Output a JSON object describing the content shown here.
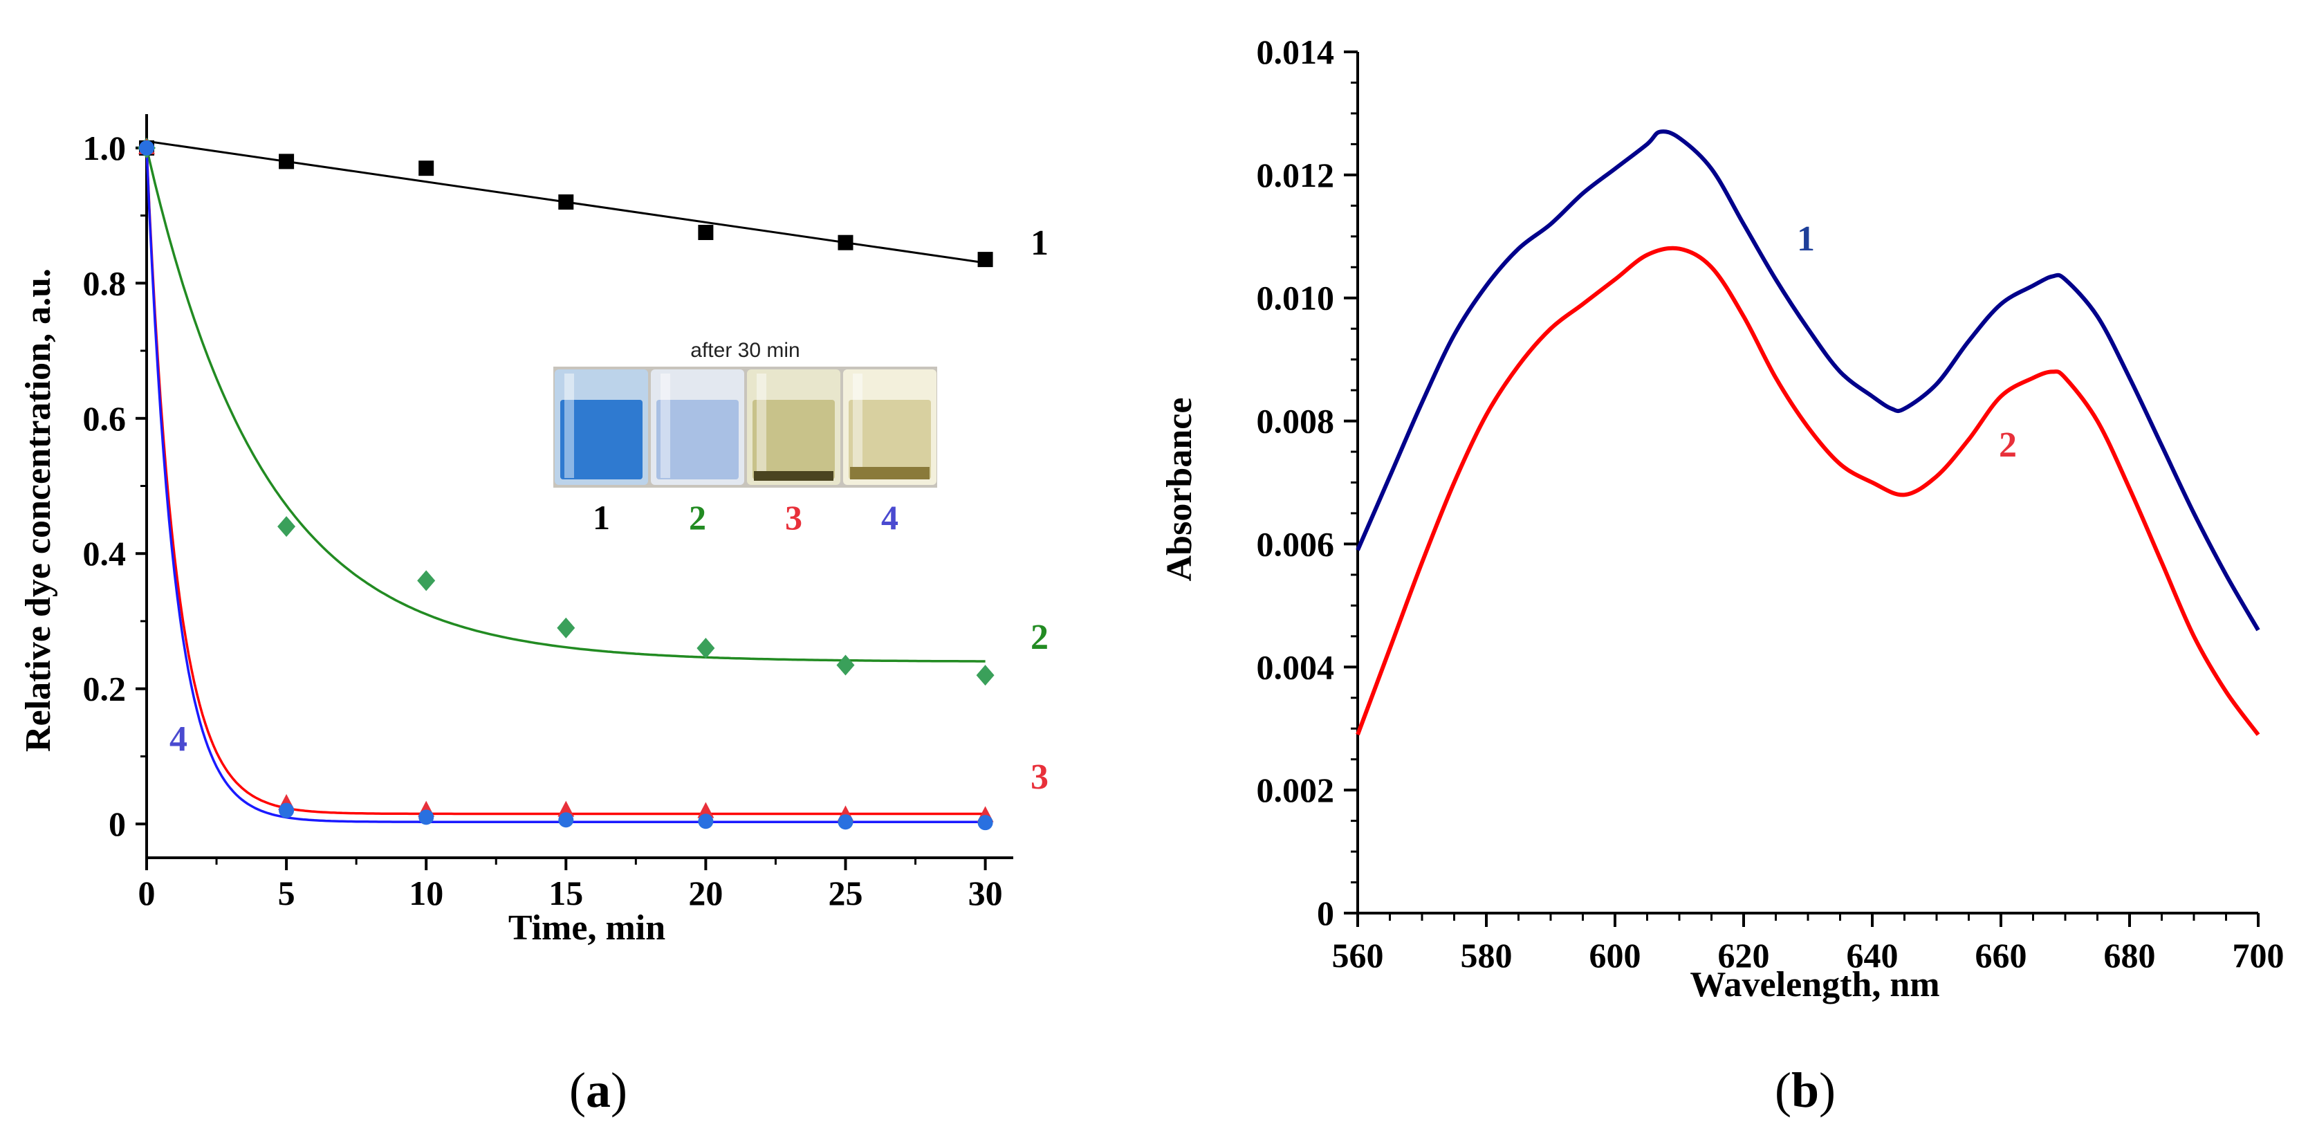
{
  "chart_data": [
    {
      "type": "scatter",
      "panel": "a",
      "title": "",
      "xlabel": "Time, min",
      "ylabel": "Relative dye concentration, a.u.",
      "xlim": [
        0,
        31
      ],
      "ylim": [
        -0.05,
        1.05
      ],
      "x_ticks": [
        0,
        5,
        10,
        15,
        20,
        25,
        30
      ],
      "x_tick_labels": [
        "0",
        "5",
        "10",
        "15",
        "20",
        "25",
        "30"
      ],
      "y_ticks": [
        0,
        0.2,
        0.4,
        0.6,
        0.8,
        1.0
      ],
      "y_tick_labels": [
        "0",
        "0.2",
        "0.4",
        "0.6",
        "0.8",
        "1.0"
      ],
      "grid": false,
      "series": [
        {
          "name": "1",
          "label": "1",
          "color": "#000000",
          "marker": "square",
          "x": [
            0,
            5,
            10,
            15,
            20,
            25,
            30
          ],
          "values": [
            1.0,
            0.98,
            0.97,
            0.92,
            0.875,
            0.86,
            0.835
          ],
          "fit": {
            "kind": "linear",
            "x0": 0,
            "y0": 1.01,
            "x1": 30,
            "y1": 0.83
          }
        },
        {
          "name": "2",
          "label": "2",
          "color": "#3aa05a",
          "line_color": "#228b22",
          "marker": "diamond",
          "x": [
            0,
            5,
            10,
            15,
            20,
            25,
            30
          ],
          "values": [
            1.0,
            0.44,
            0.36,
            0.29,
            0.26,
            0.235,
            0.22
          ],
          "fit": {
            "kind": "exp",
            "a": 0.24,
            "b": 0.76,
            "tau": 4.2
          }
        },
        {
          "name": "3",
          "label": "3",
          "color": "#e8303a",
          "line_color": "#ff0000",
          "marker": "triangle",
          "x": [
            0,
            5,
            10,
            15,
            20,
            25,
            30
          ],
          "values": [
            1.0,
            0.03,
            0.02,
            0.02,
            0.018,
            0.013,
            0.012
          ],
          "fit": {
            "kind": "exp",
            "a": 0.015,
            "b": 0.985,
            "tau": 1.05
          }
        },
        {
          "name": "4",
          "label": "4",
          "color": "#2970e0",
          "line_color": "#1a1aff",
          "marker": "circle",
          "x": [
            0,
            5,
            10,
            15,
            20,
            25,
            30
          ],
          "values": [
            1.0,
            0.02,
            0.01,
            0.006,
            0.004,
            0.003,
            0.002
          ],
          "fit": {
            "kind": "exp",
            "a": 0.003,
            "b": 0.997,
            "tau": 1.0
          }
        }
      ],
      "inset": {
        "caption": "after 30 min",
        "labels": [
          "1",
          "2",
          "3",
          "4"
        ],
        "label_colors": [
          "#000000",
          "#228b22",
          "#e8303a",
          "#4a4ad0"
        ]
      },
      "panel_label": "a"
    },
    {
      "type": "line",
      "panel": "b",
      "title": "",
      "xlabel": "Wavelength, nm",
      "ylabel": "Absorbance",
      "xlim": [
        560,
        700
      ],
      "ylim": [
        0,
        0.014
      ],
      "x_ticks": [
        560,
        580,
        600,
        620,
        640,
        660,
        680,
        700
      ],
      "x_tick_labels": [
        "560",
        "580",
        "600",
        "620",
        "640",
        "660",
        "680",
        "700"
      ],
      "y_ticks": [
        0,
        0.002,
        0.004,
        0.006,
        0.008,
        0.01,
        0.012,
        0.014
      ],
      "y_tick_labels": [
        "0",
        "0.002",
        "0.004",
        "0.006",
        "0.008",
        "0.010",
        "0.012",
        "0.014"
      ],
      "grid": false,
      "series": [
        {
          "name": "1",
          "label": "1",
          "color": "#00008b",
          "label_color": "#1e3f99",
          "x": [
            560,
            565,
            570,
            575,
            580,
            585,
            590,
            595,
            600,
            605,
            607,
            610,
            615,
            620,
            625,
            630,
            635,
            640,
            643,
            645,
            650,
            655,
            660,
            665,
            668,
            670,
            675,
            680,
            685,
            690,
            695,
            700
          ],
          "values": [
            0.0059,
            0.0071,
            0.0083,
            0.0094,
            0.0102,
            0.0108,
            0.0112,
            0.0117,
            0.0121,
            0.0125,
            0.0127,
            0.0126,
            0.0121,
            0.0112,
            0.0103,
            0.0095,
            0.0088,
            0.0084,
            0.0082,
            0.0082,
            0.0086,
            0.0093,
            0.0099,
            0.0102,
            0.01035,
            0.0103,
            0.0097,
            0.0087,
            0.0076,
            0.0065,
            0.0055,
            0.0046
          ]
        },
        {
          "name": "2",
          "label": "2",
          "color": "#ff0000",
          "label_color": "#e8303a",
          "x": [
            560,
            565,
            570,
            575,
            580,
            585,
            590,
            595,
            600,
            605,
            610,
            615,
            620,
            625,
            630,
            635,
            640,
            645,
            650,
            655,
            660,
            665,
            668,
            670,
            675,
            680,
            685,
            690,
            695,
            700
          ],
          "values": [
            0.0029,
            0.0043,
            0.0057,
            0.007,
            0.0081,
            0.0089,
            0.0095,
            0.0099,
            0.0103,
            0.0107,
            0.0108,
            0.0105,
            0.0097,
            0.0087,
            0.0079,
            0.0073,
            0.007,
            0.0068,
            0.0071,
            0.0077,
            0.0084,
            0.0087,
            0.0088,
            0.0087,
            0.008,
            0.0069,
            0.0057,
            0.0045,
            0.0036,
            0.0029
          ]
        }
      ],
      "panel_label": "b"
    }
  ],
  "captions": {
    "a_open": "(",
    "a_letter": "a",
    "a_close": ")",
    "b_open": "(",
    "b_letter": "b",
    "b_close": ")"
  }
}
